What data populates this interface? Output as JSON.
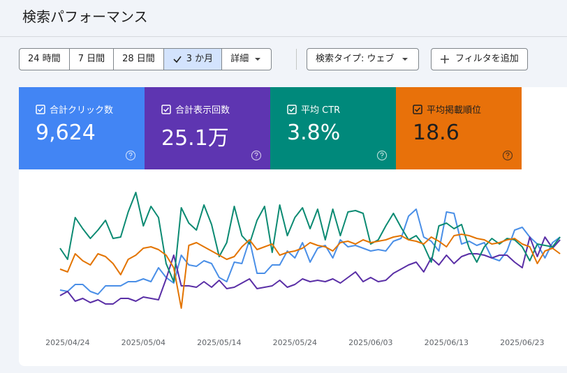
{
  "header": {
    "title": "検索パフォーマンス"
  },
  "toolbar": {
    "ranges": [
      "24 時間",
      "7 日間",
      "28 日間",
      "3 か月"
    ],
    "more": "詳細",
    "search_type": "検索タイプ: ウェブ",
    "add_filter": "フィルタを追加"
  },
  "chart_data": {
    "type": "line",
    "ylim": [
      0,
      100
    ],
    "categories": [
      null,
      "2025/04/24",
      null,
      null,
      null,
      null,
      null,
      null,
      null,
      null,
      null,
      "2025/05/04",
      null,
      null,
      null,
      null,
      null,
      null,
      null,
      null,
      null,
      "2025/05/14",
      null,
      null,
      null,
      null,
      null,
      null,
      null,
      null,
      null,
      "2025/05/24",
      null,
      null,
      null,
      null,
      null,
      null,
      null,
      null,
      null,
      "2025/06/03",
      null,
      null,
      null,
      null,
      null,
      null,
      null,
      null,
      null,
      "2025/06/13",
      null,
      null,
      null,
      null,
      null,
      null,
      null,
      null,
      null,
      "2025/06/23",
      null,
      null,
      null,
      null,
      null
    ],
    "series": [
      {
        "name": "合計クリック数",
        "total": "9,624",
        "card_color": "#4285f4",
        "text_color": "#ffffff",
        "color": "#4a8fe7",
        "values": [
          22,
          21,
          26,
          26,
          21,
          19,
          25,
          25,
          25,
          28,
          28,
          30,
          28,
          38,
          31,
          27,
          47,
          40,
          39,
          43,
          41,
          31,
          28,
          42,
          41,
          58,
          34,
          34,
          40,
          40,
          50,
          45,
          56,
          42,
          52,
          54,
          45,
          58,
          53,
          54,
          52,
          50,
          51,
          50,
          57,
          59,
          75,
          80,
          60,
          57,
          50,
          78,
          77,
          55,
          57,
          54,
          56,
          45,
          43,
          50,
          65,
          67,
          60,
          55,
          45,
          56,
          60
        ]
      },
      {
        "name": "合計表示回数",
        "total": "25.1万",
        "card_color": "#5e35b1",
        "text_color": "#ffffff",
        "color": "#5a2fa6",
        "values": [
          18,
          21,
          14,
          16,
          13,
          15,
          12,
          12,
          16,
          16,
          14,
          17,
          16,
          15,
          30,
          47,
          25,
          25,
          24,
          28,
          24,
          29,
          23,
          24,
          27,
          30,
          23,
          24,
          25,
          29,
          24,
          26,
          30,
          28,
          29,
          28,
          30,
          27,
          31,
          35,
          28,
          31,
          28,
          29,
          34,
          37,
          40,
          42,
          35,
          45,
          40,
          47,
          41,
          46,
          48,
          48,
          47,
          45,
          47,
          47,
          42,
          38,
          60,
          46,
          60,
          52,
          58
        ]
      },
      {
        "name": "平均 CTR",
        "total": "3.8%",
        "card_color": "#00897b",
        "text_color": "#ffffff",
        "color": "#0b8a72",
        "values": [
          52,
          44,
          74,
          66,
          59,
          65,
          72,
          59,
          60,
          78,
          92,
          68,
          82,
          74,
          41,
          28,
          81,
          70,
          65,
          83,
          69,
          46,
          56,
          82,
          61,
          55,
          72,
          82,
          49,
          83,
          61,
          74,
          81,
          66,
          80,
          58,
          80,
          61,
          78,
          79,
          77,
          55,
          58,
          68,
          77,
          67,
          58,
          61,
          54,
          42,
          68,
          70,
          66,
          69,
          52,
          42,
          53,
          59,
          55,
          59,
          58,
          53,
          43,
          55,
          54,
          53,
          60
        ]
      },
      {
        "name": "平均掲載順位",
        "total": "18.6",
        "card_color": "#e8710a",
        "text_color": "#1f1f1f",
        "color": "#e37400",
        "values": [
          37,
          35,
          48,
          43,
          40,
          48,
          46,
          41,
          33,
          44,
          47,
          52,
          53,
          51,
          47,
          38,
          9,
          54,
          56,
          53,
          50,
          47,
          44,
          46,
          53,
          58,
          51,
          53,
          55,
          47,
          49,
          50,
          52,
          56,
          54,
          53,
          50,
          56,
          57,
          55,
          58,
          56,
          57,
          58,
          60,
          61,
          58,
          57,
          55,
          60,
          57,
          53,
          61,
          62,
          61,
          59,
          58,
          55,
          56,
          58,
          59,
          55,
          53,
          41,
          50,
          52,
          48
        ]
      }
    ]
  }
}
